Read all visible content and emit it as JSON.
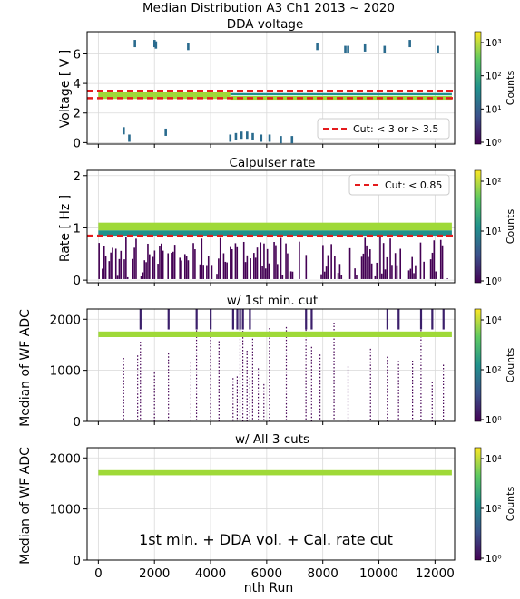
{
  "figure": {
    "suptitle": "Median Distribution A3 Ch1 2013 ~ 2020",
    "xlabel": "nth Run",
    "colors": {
      "cut_line": "#e41a1c",
      "annotation": "#e41a1c"
    }
  },
  "chart_data": [
    {
      "type": "heatmap",
      "title": "DDA voltage",
      "ylabel": "Voltage [ V ]",
      "xlim": [
        -400,
        12700
      ],
      "ylim": [
        -0.1,
        7.5
      ],
      "yticks": [
        0,
        2,
        4,
        6
      ],
      "xticks": [
        0,
        2000,
        4000,
        6000,
        8000,
        10000,
        12000
      ],
      "grid": true,
      "colorbar": {
        "label": "Counts",
        "scale": "log",
        "ticks": [
          "10⁰",
          "10¹",
          "10²",
          "10³"
        ],
        "colormap": "viridis"
      },
      "cut_lines": [
        3,
        3.5
      ],
      "legend": {
        "entries": [
          "Cut:  < 3 or > 3.5"
        ],
        "placement": "lower-right"
      },
      "density_bands": [
        {
          "x_range": [
            0,
            4700
          ],
          "y_range": [
            2.95,
            3.45
          ],
          "level": "high"
        },
        {
          "x_range": [
            4700,
            12600
          ],
          "y_range": [
            2.9,
            3.15
          ],
          "level": "high"
        },
        {
          "x_range": [
            4700,
            12600
          ],
          "y_range": [
            3.2,
            3.35
          ],
          "level": "medium"
        }
      ],
      "outliers": [
        {
          "x": 1300,
          "y": 6.7
        },
        {
          "x": 2000,
          "y": 6.7
        },
        {
          "x": 2050,
          "y": 6.6
        },
        {
          "x": 3200,
          "y": 6.5
        },
        {
          "x": 7800,
          "y": 6.5
        },
        {
          "x": 8800,
          "y": 6.3
        },
        {
          "x": 8900,
          "y": 6.3
        },
        {
          "x": 9500,
          "y": 6.4
        },
        {
          "x": 10200,
          "y": 6.3
        },
        {
          "x": 11100,
          "y": 6.7
        },
        {
          "x": 12100,
          "y": 6.3
        },
        {
          "x": 900,
          "y": 0.8
        },
        {
          "x": 1100,
          "y": 0.3
        },
        {
          "x": 2400,
          "y": 0.7
        },
        {
          "x": 4700,
          "y": 0.3
        },
        {
          "x": 4900,
          "y": 0.4
        },
        {
          "x": 5100,
          "y": 0.5
        },
        {
          "x": 5300,
          "y": 0.5
        },
        {
          "x": 5500,
          "y": 0.4
        },
        {
          "x": 5800,
          "y": 0.3
        },
        {
          "x": 6100,
          "y": 0.3
        },
        {
          "x": 6500,
          "y": 0.2
        },
        {
          "x": 6900,
          "y": 0.2
        }
      ]
    },
    {
      "type": "heatmap",
      "title": "Calpulser rate",
      "ylabel": "Rate [ Hz ]",
      "xlim": [
        -400,
        12700
      ],
      "ylim": [
        -0.05,
        2.1
      ],
      "yticks": [
        0,
        1,
        2
      ],
      "xticks": [
        0,
        2000,
        4000,
        6000,
        8000,
        10000,
        12000
      ],
      "grid": true,
      "colorbar": {
        "label": "Counts",
        "scale": "log",
        "ticks": [
          "10⁰",
          "10¹",
          "10²"
        ],
        "colormap": "viridis"
      },
      "cut_lines": [
        0.85
      ],
      "legend": {
        "entries": [
          "Cut: < 0.85"
        ],
        "placement": "upper-right"
      },
      "density_bands": [
        {
          "x_range": [
            0,
            12600
          ],
          "y_range": [
            0.95,
            1.1
          ],
          "level": "high"
        },
        {
          "x_range": [
            0,
            12600
          ],
          "y_range": [
            0.85,
            0.95
          ],
          "level": "medium"
        },
        {
          "x_range": [
            0,
            12600
          ],
          "y_range": [
            0.02,
            0.85
          ],
          "level": "low-sparse"
        }
      ]
    },
    {
      "type": "heatmap",
      "title": "w/ 1st min. cut",
      "ylabel": "Median of WF ADC",
      "xlim": [
        -400,
        12700
      ],
      "ylim": [
        0,
        2200
      ],
      "yticks": [
        0,
        1000,
        2000
      ],
      "xticks": [
        0,
        2000,
        4000,
        6000,
        8000,
        10000,
        12000
      ],
      "grid": true,
      "colorbar": {
        "label": "Counts",
        "scale": "log",
        "ticks": [
          "10⁰",
          "10²",
          "10⁴"
        ],
        "colormap": "viridis"
      },
      "density_bands": [
        {
          "x_range": [
            0,
            12600
          ],
          "y_range": [
            1650,
            1760
          ],
          "level": "high"
        }
      ],
      "streak_columns": [
        900,
        1400,
        1500,
        2000,
        2500,
        3300,
        3500,
        4000,
        4300,
        4800,
        4950,
        5050,
        5150,
        5300,
        5400,
        5500,
        5700,
        5900,
        6100,
        6700,
        7400,
        7600,
        7900,
        8400,
        8900,
        9700,
        10300,
        10700,
        11200,
        11500,
        11900,
        12300
      ]
    },
    {
      "type": "heatmap",
      "title": "w/ All 3 cuts",
      "ylabel": "Median of WF ADC",
      "xlim": [
        -400,
        12700
      ],
      "ylim": [
        0,
        2200
      ],
      "yticks": [
        0,
        1000,
        2000
      ],
      "xticks": [
        0,
        2000,
        4000,
        6000,
        8000,
        10000,
        12000
      ],
      "grid": true,
      "colorbar": {
        "label": "Counts",
        "scale": "log",
        "ticks": [
          "10⁰",
          "10²",
          "10⁴"
        ],
        "colormap": "viridis"
      },
      "annotation": "1st min. + DDA vol. + Cal. rate cut",
      "density_bands": [
        {
          "x_range": [
            0,
            12600
          ],
          "y_range": [
            1660,
            1760
          ],
          "level": "high"
        }
      ]
    }
  ]
}
